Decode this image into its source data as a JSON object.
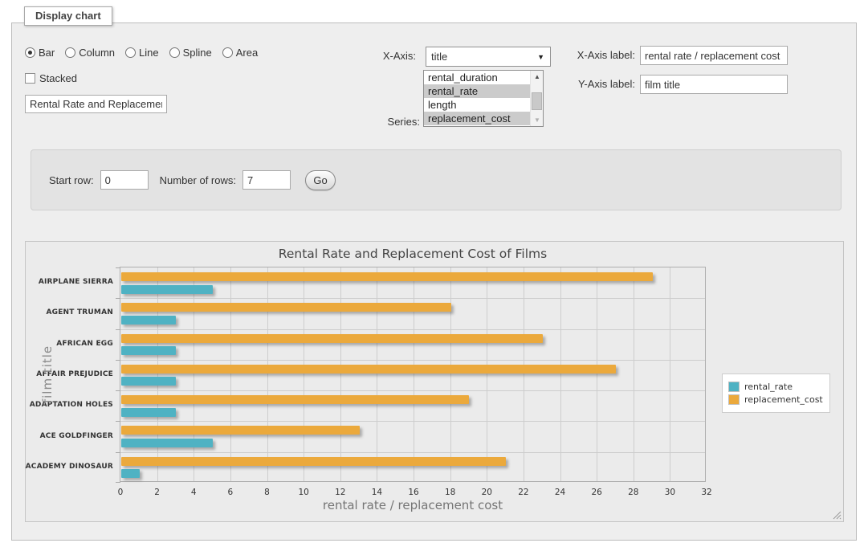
{
  "window": {
    "legend": "Display chart"
  },
  "form": {
    "chart_types": {
      "options": [
        {
          "label": "Bar",
          "selected": true
        },
        {
          "label": "Column",
          "selected": false
        },
        {
          "label": "Line",
          "selected": false
        },
        {
          "label": "Spline",
          "selected": false
        },
        {
          "label": "Area",
          "selected": false
        }
      ]
    },
    "stacked": {
      "label": "Stacked",
      "checked": false
    },
    "chart_title_input": {
      "value": "Rental Rate and Replacement Cost of Films"
    },
    "x_axis": {
      "label": "X-Axis:",
      "selected": "title"
    },
    "series_list": {
      "label": "Series:",
      "options": [
        {
          "label": "rental_duration",
          "selected": false
        },
        {
          "label": "rental_rate",
          "selected": true
        },
        {
          "label": "length",
          "selected": false
        },
        {
          "label": "replacement_cost",
          "selected": true
        }
      ]
    },
    "x_axis_label": {
      "label": "X-Axis label:",
      "value": "rental rate / replacement cost"
    },
    "y_axis_label": {
      "label": "Y-Axis label:",
      "value": "film title"
    }
  },
  "rows_panel": {
    "start_row_label": "Start row:",
    "start_row_value": "0",
    "num_rows_label": "Number of rows:",
    "num_rows_value": "7",
    "go_label": "Go"
  },
  "chart_data": {
    "type": "bar",
    "orientation": "horizontal",
    "title": "Rental Rate and Replacement Cost of Films",
    "xlabel": "rental rate / replacement cost",
    "ylabel": "film title",
    "categories": [
      "AIRPLANE SIERRA",
      "AGENT TRUMAN",
      "AFRICAN EGG",
      "AFFAIR PREJUDICE",
      "ADAPTATION HOLES",
      "ACE GOLDFINGER",
      "ACADEMY DINOSAUR"
    ],
    "series": [
      {
        "name": "rental_rate",
        "color": "#4fb2c3",
        "values": [
          5,
          3,
          3,
          3,
          3,
          5,
          1
        ]
      },
      {
        "name": "replacement_cost",
        "color": "#eba93c",
        "values": [
          29,
          18,
          23,
          27,
          19,
          13,
          21
        ]
      }
    ],
    "xlim": [
      0,
      32
    ],
    "xtick_step": 2,
    "grid": true,
    "legend_position": "right",
    "colors": {
      "gridline": "#cdcdcd",
      "plot_border": "#aeaeae",
      "background": "#ebebeb"
    }
  }
}
